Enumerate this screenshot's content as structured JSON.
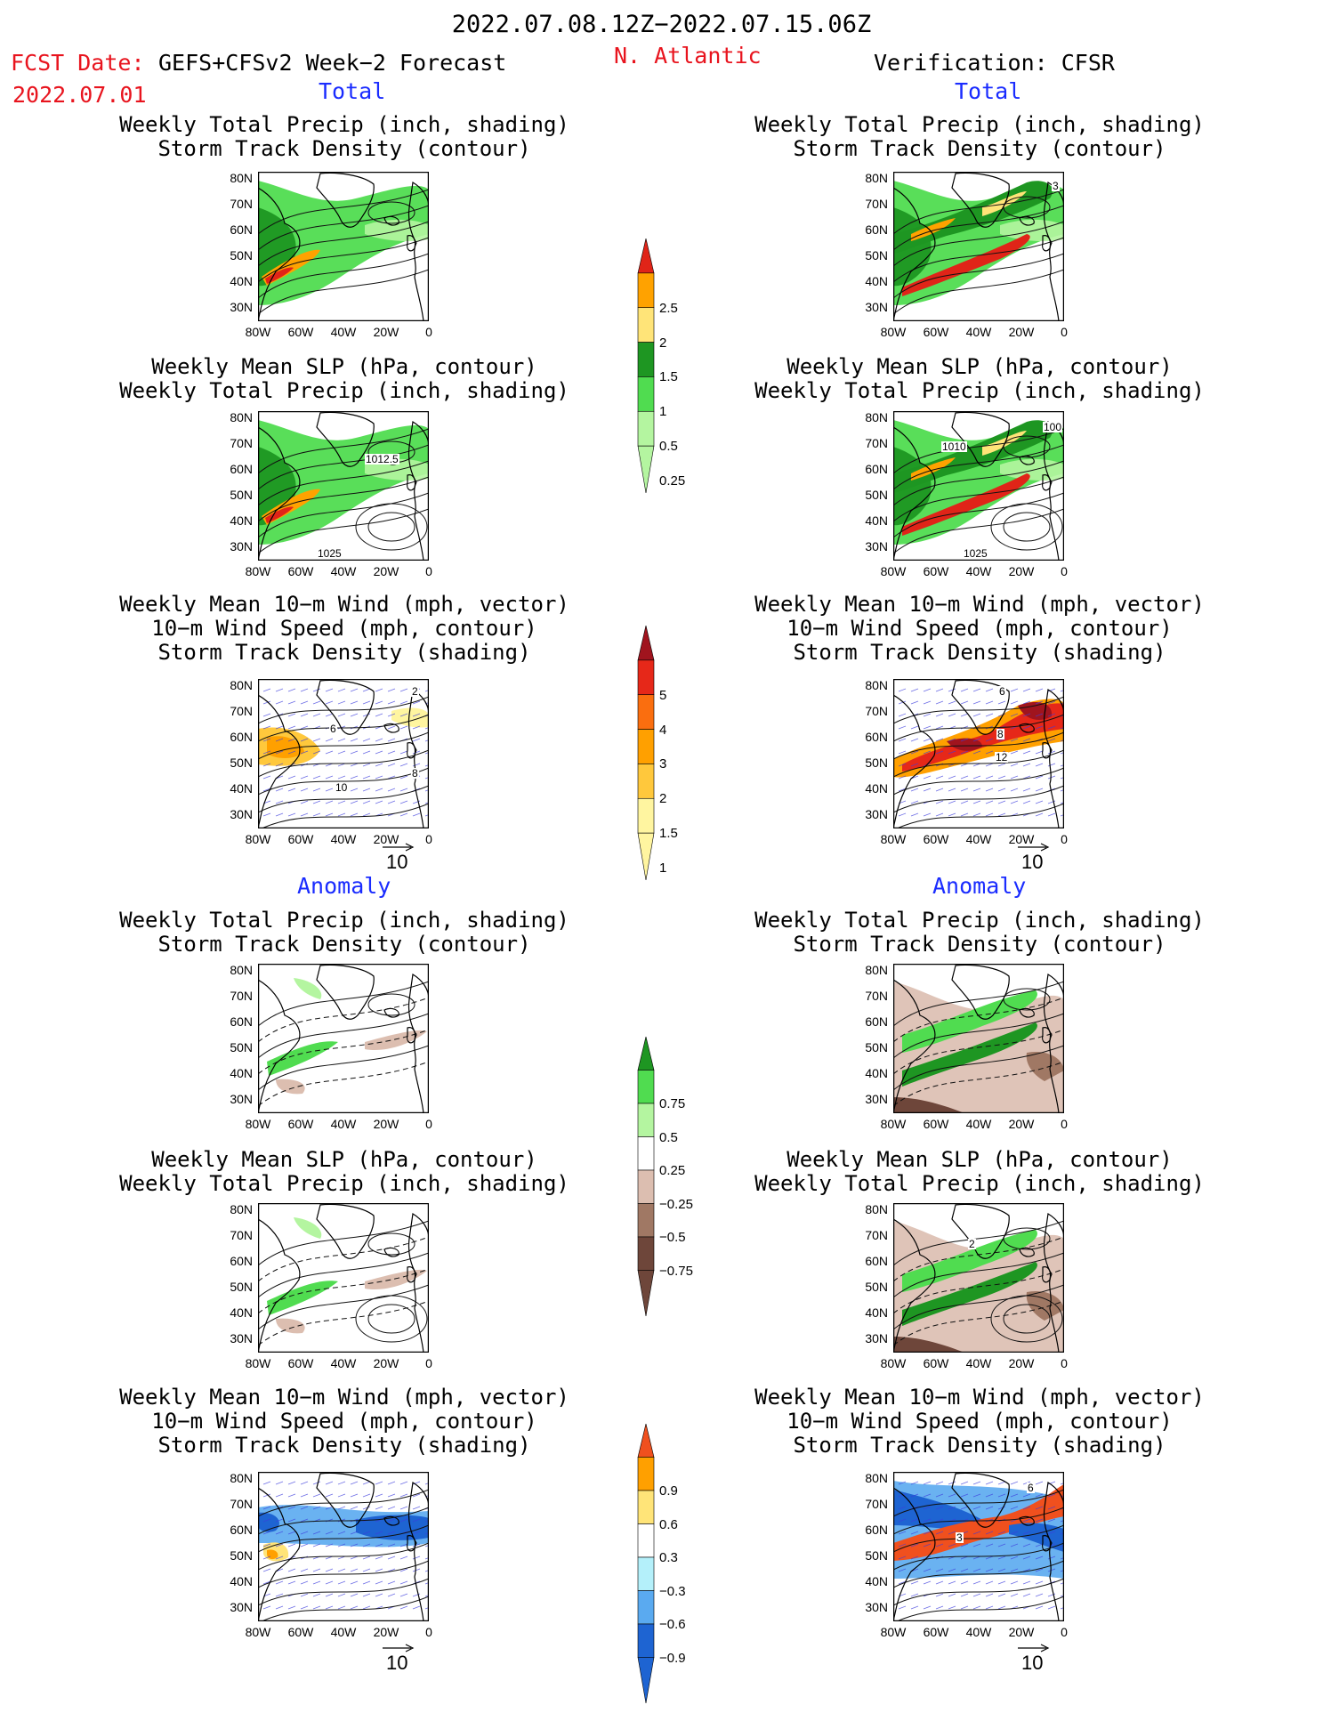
{
  "header": {
    "period": "2022.07.08.12Z−2022.07.15.06Z",
    "fcst_label": "FCST Date:",
    "model": "GEFS+CFSv2 Week−2 Forecast",
    "fcst_date": "2022.07.01",
    "region": "N. Atlantic",
    "verification": "Verification: CFSR"
  },
  "sections": {
    "total": "Total",
    "anomaly": "Anomaly"
  },
  "titles": {
    "precip_storm": [
      "Weekly Total Precip (inch, shading)",
      "Storm Track Density (contour)"
    ],
    "slp_precip": [
      "Weekly Mean SLP (hPa, contour)",
      "Weekly Total Precip (inch, shading)"
    ],
    "wind_storm": [
      "Weekly Mean 10−m Wind (mph, vector)",
      "10−m Wind Speed (mph, contour)",
      "Storm Track Density (shading)"
    ]
  },
  "axes": {
    "lat_ticks": [
      "80N",
      "70N",
      "60N",
      "50N",
      "40N",
      "30N"
    ],
    "lon_ticks": [
      "80W",
      "60W",
      "40W",
      "20W",
      "0"
    ]
  },
  "vector_ref": "10",
  "contour_labels": {
    "fc_slp_1": "1012.5",
    "fc_slp_2": "1025",
    "ob_slp_1": "1010",
    "ob_slp_2": "100",
    "ob_slp_3": "1025",
    "ob_precip_storm": "3",
    "fc_wind_1": "2",
    "fc_wind_2": "6",
    "fc_wind_3": "10",
    "fc_wind_4": "8",
    "ob_wind_1": "6",
    "ob_wind_2": "8",
    "ob_wind_3": "12",
    "ob_slp_anom": "2",
    "ob_wind_anom_1": "6",
    "ob_wind_anom_2": "3"
  },
  "colorbars": {
    "precip_total": {
      "labels": [
        "2.5",
        "2",
        "1.5",
        "1",
        "0.5",
        "0.25"
      ],
      "colors": [
        "#e02418",
        "#ffa200",
        "#ffe478",
        "#1e9622",
        "#50dc50",
        "#b4f5a0"
      ]
    },
    "storm_total": {
      "labels": [
        "5",
        "4",
        "3",
        "2",
        "1.5",
        "1"
      ],
      "colors": [
        "#a0141e",
        "#e62819",
        "#fa6e0f",
        "#ffa000",
        "#ffc83c",
        "#fff5a0"
      ]
    },
    "precip_anom": {
      "labels": [
        "0.75",
        "0.5",
        "0.25",
        "−0.25",
        "−0.5",
        "−0.75"
      ],
      "colors": [
        "#1e9622",
        "#50dc50",
        "#b4f5a0",
        "#ffffff",
        "#dcbeb0",
        "#a07864",
        "#6e463a"
      ]
    },
    "storm_anom": {
      "labels": [
        "0.9",
        "0.6",
        "0.3",
        "−0.3",
        "−0.6",
        "−0.9"
      ],
      "colors": [
        "#f0501e",
        "#ffa000",
        "#ffe478",
        "#ffffff",
        "#b4f0fa",
        "#5aaaf0",
        "#1e64d2"
      ]
    }
  }
}
